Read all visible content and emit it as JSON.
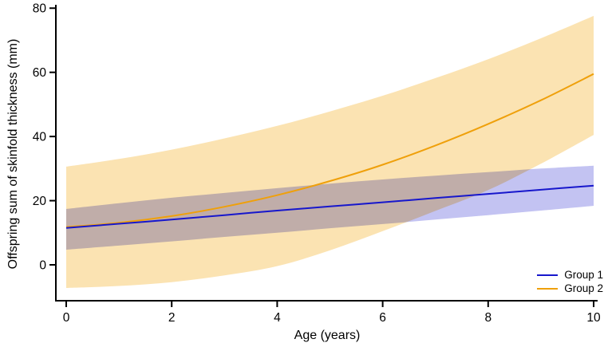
{
  "figure": {
    "background": "#ffffff",
    "axis_color": "#000000"
  },
  "chart_data": {
    "type": "line",
    "title": "",
    "xlabel": "Age (years)",
    "ylabel": "Offspring sum of skinfold thickness (mm)",
    "xlim": [
      -0.2,
      10.3
    ],
    "ylim": [
      -11.5,
      80.5
    ],
    "x_ticks": [
      0,
      2,
      4,
      6,
      8,
      10
    ],
    "y_ticks": [
      0,
      20,
      40,
      60,
      80
    ],
    "grid": false,
    "legend_position": "lower right",
    "x": [
      0,
      1,
      2,
      3,
      4,
      5,
      6,
      7,
      8,
      9,
      10
    ],
    "series": [
      {
        "name": "Group 1",
        "line_color": "#1717cc",
        "band_color": "#c3c3f2",
        "mean": [
          11.5,
          12.8,
          14.1,
          15.5,
          16.9,
          18.2,
          19.5,
          20.8,
          22.1,
          23.4,
          24.7
        ],
        "lower": [
          4.7,
          6.0,
          7.3,
          8.7,
          10.0,
          11.4,
          12.7,
          14.1,
          15.5,
          16.9,
          18.4
        ],
        "upper": [
          17.4,
          19.2,
          20.9,
          22.4,
          23.9,
          25.3,
          26.6,
          27.8,
          28.9,
          30.0,
          30.9
        ]
      },
      {
        "name": "Group 2",
        "line_color": "#efa00b",
        "band_color": "#fbe3b2",
        "mean": [
          11.8,
          13.1,
          15.2,
          18.1,
          21.7,
          26.1,
          31.2,
          37.2,
          43.9,
          51.3,
          59.5
        ],
        "lower": [
          -7.2,
          -6.6,
          -5.4,
          -3.3,
          -0.4,
          4.5,
          10.5,
          16.8,
          23.3,
          31.5,
          40.5
        ],
        "upper": [
          30.6,
          33.0,
          35.9,
          39.4,
          43.3,
          47.8,
          52.7,
          58.2,
          64.1,
          70.6,
          77.6
        ]
      }
    ]
  },
  "legend": {
    "items": [
      {
        "label": "Group 1",
        "color": "#1717cc"
      },
      {
        "label": "Group 2",
        "color": "#efa00b"
      }
    ]
  }
}
